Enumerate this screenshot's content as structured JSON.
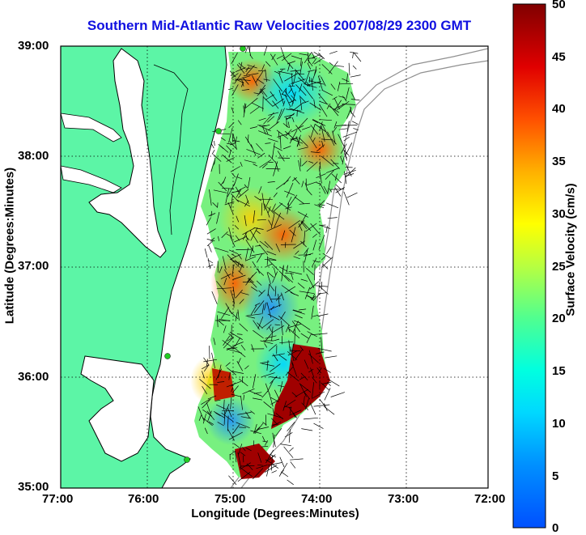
{
  "title": "Southern Mid-Atlantic Raw Velocities 2007/08/29 2300 GMT",
  "axes": {
    "xlabel": "Longitude (Degrees:Minutes)",
    "ylabel": "Latitude (Degrees:Minutes)",
    "x_ticks": [
      "77:00",
      "76:00",
      "75:00",
      "74:00",
      "73:00",
      "72:00"
    ],
    "y_ticks": [
      "39:00",
      "38:00",
      "37:00",
      "36:00",
      "35:00"
    ]
  },
  "colorbar": {
    "label": "Surface Velocity (cm/s)",
    "ticks": [
      "50",
      "45",
      "40",
      "35",
      "30",
      "25",
      "20",
      "15",
      "10",
      "5",
      "0"
    ],
    "range": [
      0,
      50
    ]
  },
  "colors": {
    "title": "#1010e0",
    "land": "#5cf5a6",
    "water_body": "#ffffff",
    "coastline": "#000000",
    "isobath": "#909090",
    "site_marker": "#22cc22"
  },
  "map": {
    "type": "surface current vector map",
    "lon_range": [
      "77:00 W",
      "72:00 W"
    ],
    "lat_range": [
      "35:00 N",
      "39:00 N"
    ],
    "grid": true
  }
}
